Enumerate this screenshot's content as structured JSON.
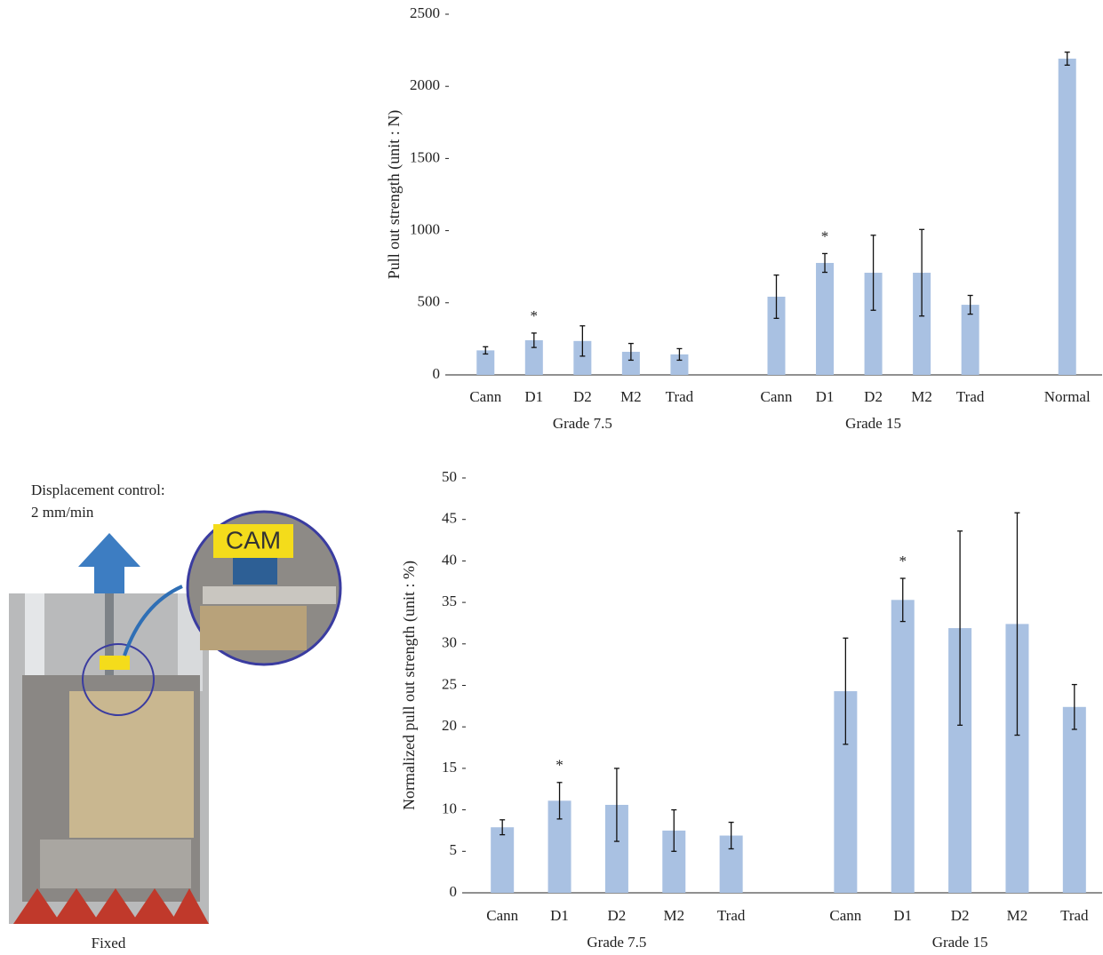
{
  "photo": {
    "caption_line1": "Displacement control:",
    "caption_line2": "2 mm/min",
    "tag": "CAM",
    "base_label": "Fixed"
  },
  "chart_data": [
    {
      "type": "bar",
      "y_label": "Pull out strength (unit : N)",
      "categories": [
        "Cann",
        "D1",
        "D2",
        "M2",
        "Trad",
        null,
        "Cann",
        "D1",
        "D2",
        "M2",
        "Trad",
        null,
        "Normal"
      ],
      "values": [
        170,
        240,
        235,
        160,
        142,
        null,
        542,
        776,
        708,
        708,
        486,
        null,
        2192
      ],
      "errors": [
        25,
        50,
        105,
        58,
        40,
        null,
        150,
        65,
        260,
        300,
        65,
        null,
        45
      ],
      "significance": [
        null,
        "*",
        null,
        null,
        null,
        null,
        null,
        "*",
        null,
        null,
        null,
        null,
        null
      ],
      "groups": [
        "Grade 7.5",
        "Grade 15"
      ],
      "color": "#a9c1e2",
      "error_color": "#111111",
      "ylim": [
        0,
        2500
      ],
      "yticks": [
        0,
        500,
        1000,
        1500,
        2000,
        2500
      ],
      "grid": false
    },
    {
      "type": "bar",
      "y_label": "Normalized pull out strength (unit : %)",
      "categories": [
        "Cann",
        "D1",
        "D2",
        "M2",
        "Trad",
        null,
        "Cann",
        "D1",
        "D2",
        "M2",
        "Trad"
      ],
      "values": [
        7.9,
        11.1,
        10.6,
        7.5,
        6.9,
        null,
        24.3,
        35.3,
        31.9,
        32.4,
        22.4
      ],
      "errors": [
        0.9,
        2.2,
        4.4,
        2.5,
        1.6,
        null,
        6.4,
        2.6,
        11.7,
        13.4,
        2.7
      ],
      "significance": [
        null,
        "*",
        null,
        null,
        null,
        null,
        null,
        "*",
        null,
        null,
        null
      ],
      "groups": [
        "Grade 7.5",
        "Grade 15"
      ],
      "color": "#a9c1e2",
      "error_color": "#111111",
      "ylim": [
        0,
        50
      ],
      "yticks": [
        0,
        5,
        10,
        15,
        20,
        25,
        30,
        35,
        40,
        45,
        50
      ],
      "grid": false
    }
  ]
}
